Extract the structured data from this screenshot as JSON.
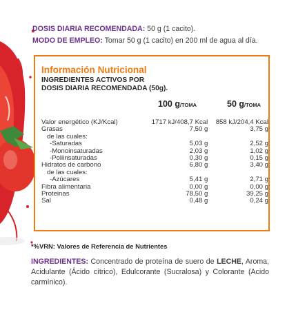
{
  "dose": {
    "label": "DOSIS DIARIA RECOMENDADA:",
    "value": " 50 g (1 cacito)."
  },
  "usage": {
    "label": "MODO DE EMPLEO:",
    "value": " Tomar 50 g (1 cacito) en 200 ml de agua al día."
  },
  "panel": {
    "title": "Información Nutricional",
    "subtitle_line1": "INGREDIENTES ACTIVOS POR",
    "subtitle_line2": "DOSIS DIARIA RECOMENDADA (50g).",
    "col1": {
      "amount": "100 g",
      "unit": "/TOMA"
    },
    "col2": {
      "amount": "50 g",
      "unit": "/TOMA"
    },
    "rows": [
      {
        "name": "Valor energético (KJ/Kcal)",
        "v1": "1717 kJ/408,7 Kcal",
        "v2": "858 kJ/204,4 Kcal"
      },
      {
        "name": "Grasas",
        "v1": "7,50 g",
        "v2": "3,75 g"
      },
      {
        "name": "de las cuales:",
        "v1": "",
        "v2": ""
      },
      {
        "name": "-Saturadas",
        "v1": "5,03 g",
        "v2": "2,52 g"
      },
      {
        "name": "-Monoinsaturadas",
        "v1": "2,03 g",
        "v2": "1,02 g"
      },
      {
        "name": "-Poliinsaturadas",
        "v1": "0,30 g",
        "v2": "0,15 g"
      },
      {
        "name": "Hidratos de carbono",
        "v1": "6,80 g",
        "v2": "3,40 g"
      },
      {
        "name": "de las cuales:",
        "v1": "",
        "v2": ""
      },
      {
        "name": "-Azúcares",
        "v1": "5,41 g",
        "v2": "2,71 g"
      },
      {
        "name": "Fibra alimentaria",
        "v1": "0,00 g",
        "v2": "0,00 g"
      },
      {
        "name": "Proteinas",
        "v1": "78,50 g",
        "v2": "39,25 g"
      },
      {
        "name": "Sal",
        "v1": "0,48 g",
        "v2": "0,24 g"
      }
    ]
  },
  "footnote": "*%VRN: Valores de Referencia de Nutrientes",
  "ingredients": {
    "label": "INGREDIENTES:",
    "text_before": "  Concentrado de proteína de suero de ",
    "allergen": "LECHE",
    "text_after": ", Aroma, Acidulante (Ácido cítrico), Edulcorante (Sucralosa) y Colorante (Acido carmínico)."
  },
  "colors": {
    "accent_orange": "#f07a12",
    "accent_purple": "#6b2f8e"
  }
}
